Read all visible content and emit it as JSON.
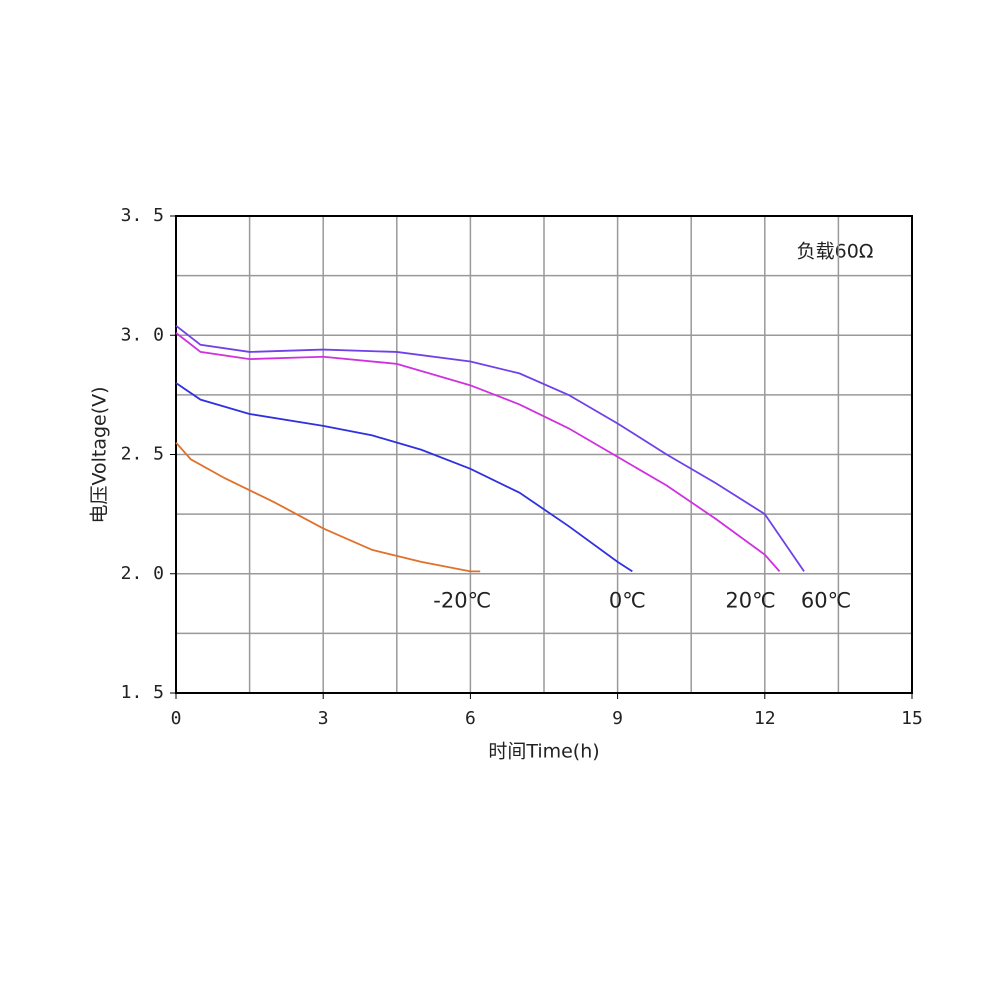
{
  "chart_data": {
    "type": "line",
    "annotation": "负载60Ω",
    "x_label": "时间Time(h)",
    "y_label": "电压Voltage(V)",
    "xlim": [
      0,
      15
    ],
    "xticks": [
      0,
      3,
      6,
      9,
      12,
      15
    ],
    "ylim": [
      1.5,
      3.5
    ],
    "yticks": [
      {
        "value": 1.5,
        "label": "1. 5"
      },
      {
        "value": 2.0,
        "label": "2. 0"
      },
      {
        "value": 2.5,
        "label": "2. 5"
      },
      {
        "value": 3.0,
        "label": "3. 0"
      },
      {
        "value": 3.5,
        "label": "3. 5"
      }
    ],
    "grid": true,
    "xgrid_minor": [
      1.5,
      4.5,
      7.5,
      10.5,
      13.5
    ],
    "ygrid_minor": [
      1.75,
      2.25,
      2.75,
      3.25
    ],
    "series": [
      {
        "name": "-20℃",
        "color": "#e0702a",
        "x": [
          0,
          0.3,
          1,
          2,
          3,
          4,
          5,
          6,
          6.2
        ],
        "values": [
          2.55,
          2.48,
          2.4,
          2.3,
          2.19,
          2.1,
          2.05,
          2.01,
          2.01
        ]
      },
      {
        "name": "0℃",
        "color": "#3030e0",
        "x": [
          0,
          0.5,
          1.5,
          3,
          4,
          5,
          6,
          7,
          8,
          9,
          9.3
        ],
        "values": [
          2.8,
          2.73,
          2.67,
          2.62,
          2.58,
          2.52,
          2.44,
          2.34,
          2.2,
          2.05,
          2.01
        ]
      },
      {
        "name": "20℃",
        "color": "#d030e0",
        "x": [
          0,
          0.5,
          1.5,
          3,
          4.5,
          6,
          7,
          8,
          9,
          10,
          11,
          12,
          12.3
        ],
        "values": [
          3.01,
          2.93,
          2.9,
          2.91,
          2.88,
          2.79,
          2.71,
          2.61,
          2.49,
          2.37,
          2.23,
          2.08,
          2.01
        ]
      },
      {
        "name": "60℃",
        "color": "#7040e8",
        "x": [
          0,
          0.5,
          1.5,
          3,
          4.5,
          6,
          7,
          8,
          9,
          10,
          11,
          12,
          12.8
        ],
        "values": [
          3.04,
          2.96,
          2.93,
          2.94,
          2.93,
          2.89,
          2.84,
          2.75,
          2.63,
          2.5,
          2.38,
          2.25,
          2.01
        ]
      }
    ]
  }
}
